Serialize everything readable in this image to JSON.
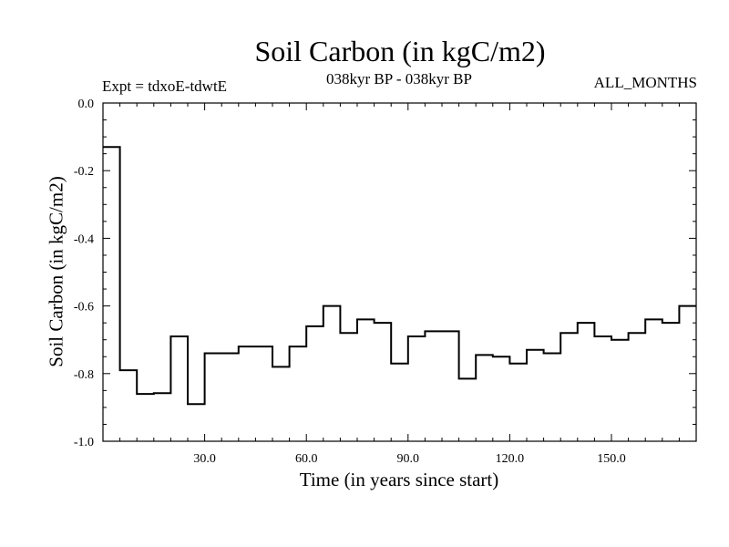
{
  "chart_data": {
    "type": "line",
    "title": "Soil Carbon (in kgC/m2)",
    "experiment_label": "Expt = tdxoE-tdwtE",
    "period_label": "038kyr BP - 038kyr BP",
    "months_label": "ALL_MONTHS",
    "xlabel": "Time (in years since start)",
    "ylabel": "Soil Carbon (in kgC/m2)",
    "xlim": [
      0,
      175
    ],
    "ylim": [
      -1.0,
      0.0
    ],
    "xticks": [
      30,
      60,
      90,
      120,
      150
    ],
    "xtick_labels": [
      "30.0",
      "60.0",
      "90.0",
      "120.0",
      "150.0"
    ],
    "yticks": [
      0.0,
      -0.2,
      -0.4,
      -0.6,
      -0.8,
      -1.0
    ],
    "ytick_labels": [
      "0.0",
      "-0.2",
      "-0.4",
      "-0.6",
      "-0.8",
      "-1.0"
    ],
    "series": [
      {
        "step": 5,
        "x": [
          0,
          5,
          10,
          15,
          20,
          25,
          30,
          35,
          40,
          45,
          50,
          55,
          60,
          65,
          70,
          75,
          80,
          85,
          90,
          95,
          100,
          105,
          110,
          115,
          120,
          125,
          130,
          135,
          140,
          145,
          150,
          155,
          160,
          165,
          170
        ],
        "values": [
          -0.13,
          -0.79,
          -0.86,
          -0.858,
          -0.69,
          -0.89,
          -0.74,
          -0.74,
          -0.72,
          -0.72,
          -0.78,
          -0.72,
          -0.66,
          -0.6,
          -0.68,
          -0.64,
          -0.65,
          -0.77,
          -0.69,
          -0.675,
          -0.675,
          -0.815,
          -0.745,
          -0.75,
          -0.77,
          -0.73,
          -0.74,
          -0.68,
          -0.65,
          -0.69,
          -0.7,
          -0.68,
          -0.64,
          -0.65,
          -0.6
        ]
      }
    ],
    "grid": false,
    "line_color": "#000000"
  }
}
